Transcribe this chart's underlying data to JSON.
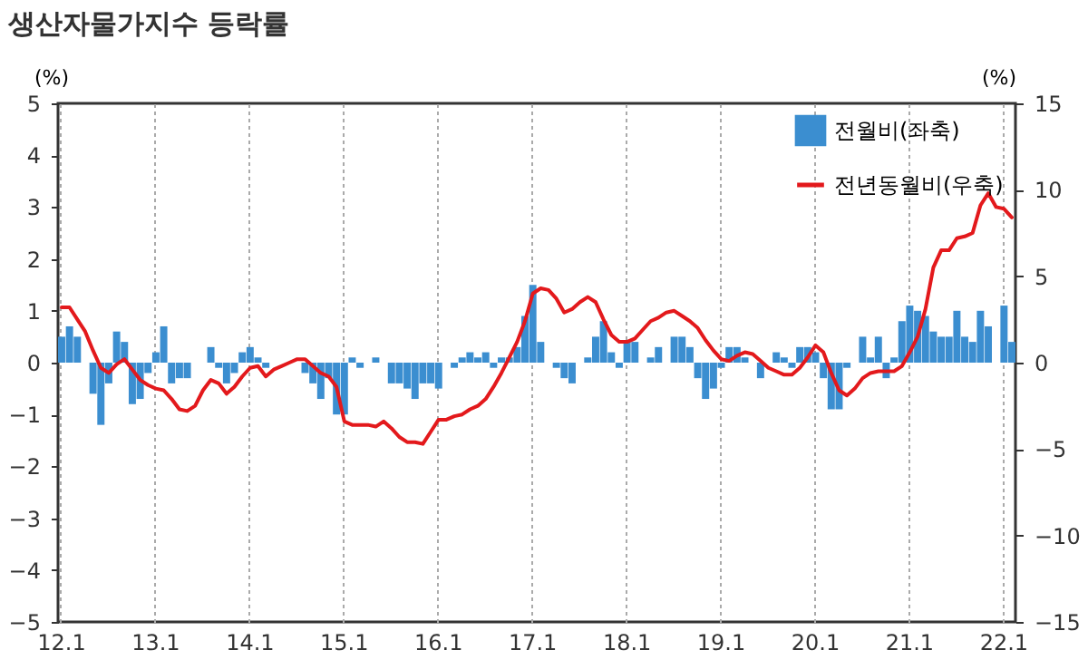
{
  "chart_data": {
    "type": "bar",
    "title": "생산자물가지수 등락률",
    "ylabel": "(%)",
    "y2label": "(%)",
    "categories": [
      "12.1",
      null,
      null,
      null,
      null,
      null,
      null,
      null,
      null,
      null,
      null,
      null,
      "13.1",
      null,
      null,
      null,
      null,
      null,
      null,
      null,
      null,
      null,
      null,
      null,
      "14.1",
      null,
      null,
      null,
      null,
      null,
      null,
      null,
      null,
      null,
      null,
      null,
      "15.1",
      null,
      null,
      null,
      null,
      null,
      null,
      null,
      null,
      null,
      null,
      null,
      "16.1",
      null,
      null,
      null,
      null,
      null,
      null,
      null,
      null,
      null,
      null,
      null,
      "17.1",
      null,
      null,
      null,
      null,
      null,
      null,
      null,
      null,
      null,
      null,
      null,
      "18.1",
      null,
      null,
      null,
      null,
      null,
      null,
      null,
      null,
      null,
      null,
      null,
      "19.1",
      null,
      null,
      null,
      null,
      null,
      null,
      null,
      null,
      null,
      null,
      null,
      "20.1",
      null,
      null,
      null,
      null,
      null,
      null,
      null,
      null,
      null,
      null,
      null,
      "21.1",
      null,
      null,
      null,
      null,
      null,
      null,
      null,
      null,
      null,
      null,
      null,
      "22.1",
      null
    ],
    "series": [
      {
        "name": "전월비(좌축)",
        "color": "#3b8ed0",
        "values": [
          0.5,
          0.7,
          0.5,
          0,
          -0.6,
          -1.2,
          -0.4,
          0.6,
          0.4,
          -0.8,
          -0.7,
          -0.2,
          0.2,
          0.7,
          -0.4,
          -0.3,
          -0.3,
          0,
          0,
          0.3,
          -0.1,
          -0.4,
          -0.2,
          0.2,
          0.3,
          0.1,
          -0.1,
          0,
          0,
          0,
          0,
          -0.2,
          -0.4,
          -0.7,
          -0.3,
          -1.0,
          -1.0,
          0.1,
          -0.1,
          0,
          0.1,
          0,
          -0.4,
          -0.4,
          -0.5,
          -0.7,
          -0.4,
          -0.4,
          -0.5,
          0,
          -0.1,
          0.1,
          0.2,
          0.1,
          0.2,
          -0.1,
          0.1,
          0.1,
          0.3,
          0.9,
          1.5,
          0.4,
          0,
          -0.1,
          -0.3,
          -0.4,
          0,
          0.1,
          0.5,
          0.8,
          0.2,
          -0.1,
          0.4,
          0.4,
          0,
          0.1,
          0.3,
          0,
          0.5,
          0.5,
          0.3,
          -0.3,
          -0.7,
          -0.5,
          -0.1,
          0.3,
          0.3,
          0.1,
          0,
          -0.3,
          0,
          0.2,
          0.1,
          -0.1,
          0.3,
          0.3,
          0.2,
          -0.3,
          -0.9,
          -0.9,
          -0.1,
          0,
          0.5,
          0.1,
          0.5,
          -0.3,
          0.1,
          0.8,
          1.1,
          1.0,
          0.9,
          0.6,
          0.5,
          0.5,
          1.0,
          0.5,
          0.4,
          1.0,
          0.7,
          0,
          1.1,
          0.4
        ]
      },
      {
        "name": "전년동월비(우축)",
        "type": "line",
        "axis": "y2",
        "color": "#e3191c",
        "values": [
          3.2,
          3.2,
          2.5,
          1.8,
          0.7,
          -0.3,
          -0.6,
          -0.1,
          0.2,
          -0.4,
          -1.0,
          -1.3,
          -1.5,
          -1.6,
          -2.1,
          -2.7,
          -2.8,
          -2.5,
          -1.6,
          -1.0,
          -1.2,
          -1.8,
          -1.4,
          -0.8,
          -0.3,
          -0.2,
          -0.8,
          -0.4,
          -0.2,
          0,
          0.2,
          0.2,
          -0.2,
          -0.6,
          -0.8,
          -1.4,
          -3.4,
          -3.6,
          -3.6,
          -3.6,
          -3.7,
          -3.4,
          -3.8,
          -4.3,
          -4.6,
          -4.6,
          -4.7,
          -4.0,
          -3.3,
          -3.3,
          -3.1,
          -3.0,
          -2.7,
          -2.5,
          -2.1,
          -1.4,
          -0.6,
          0.3,
          1.2,
          2.4,
          4.0,
          4.3,
          4.2,
          3.7,
          2.9,
          3.1,
          3.5,
          3.8,
          3.5,
          2.5,
          1.6,
          1.2,
          1.2,
          1.4,
          1.9,
          2.4,
          2.6,
          2.9,
          3.0,
          2.7,
          2.4,
          2.0,
          1.3,
          0.7,
          0.2,
          0.1,
          0.4,
          0.6,
          0.5,
          0.1,
          -0.3,
          -0.5,
          -0.7,
          -0.7,
          -0.3,
          0.3,
          1.0,
          0.6,
          -0.6,
          -1.6,
          -1.9,
          -1.5,
          -0.9,
          -0.6,
          -0.5,
          -0.5,
          -0.5,
          -0.2,
          0.6,
          1.5,
          3.1,
          5.5,
          6.5,
          6.5,
          7.2,
          7.3,
          7.5,
          9.1,
          9.8,
          9.0,
          8.9,
          8.4
        ]
      }
    ],
    "ylim": [
      -5,
      5
    ],
    "yticks": [
      -5,
      -4,
      -3,
      -2,
      -1,
      0,
      1,
      2,
      3,
      4,
      5
    ],
    "y2lim": [
      -15,
      15
    ],
    "y2ticks": [
      -15,
      -10,
      -5,
      0,
      5,
      10,
      15
    ],
    "grid": "x",
    "legend": "top right"
  }
}
